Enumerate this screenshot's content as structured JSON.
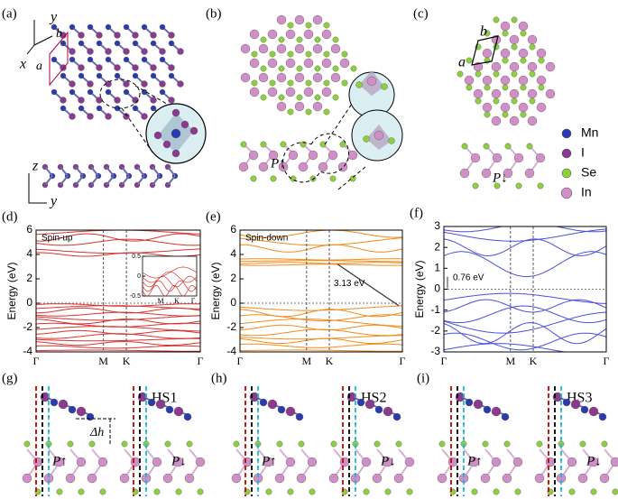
{
  "structures": [
    {
      "label": "(a)",
      "texts": [
        "y",
        "x",
        "b",
        "a",
        "z",
        "y"
      ]
    },
    {
      "label": "(b)",
      "texts": [
        "P↑"
      ]
    },
    {
      "label": "(c)",
      "texts": [
        "b",
        "a",
        "P↓"
      ]
    }
  ],
  "legend": [
    {
      "name": "Mn",
      "color": "#2a3bb0"
    },
    {
      "name": "I",
      "color": "#8a3a8f"
    },
    {
      "name": "Se",
      "color": "#8cd13a"
    },
    {
      "name": "In",
      "color": "#d08fc6"
    }
  ],
  "bands": [
    {
      "label": "(d)",
      "annotation": "Spin-up",
      "ylabel": "Energy (eV)",
      "color": "#d8322f",
      "ylim": [
        -4,
        6
      ],
      "yticks": [
        -4,
        -2,
        0,
        2,
        4,
        6
      ],
      "kpoints": [
        "Γ",
        "M",
        "K",
        "Γ"
      ],
      "inset": {
        "ylim": [
          -0.5,
          0.5
        ],
        "yticks": [
          0.5,
          0,
          -0.5
        ],
        "kpoints": [
          "M",
          "K",
          "Γ"
        ]
      }
    },
    {
      "label": "(e)",
      "annotation": "Spin-down",
      "gap": "3.13 eV",
      "ylabel": "Energy (eV)",
      "color": "#f28a1c",
      "ylim": [
        -4,
        6
      ],
      "yticks": [
        -4,
        -2,
        0,
        2,
        4,
        6
      ],
      "kpoints": [
        "Γ",
        "M",
        "K",
        "Γ"
      ]
    },
    {
      "label": "(f)",
      "gap": "0.76 eV",
      "ylabel": "Energy (eV)",
      "color": "#4a4ee0",
      "ylim": [
        -3,
        3
      ],
      "yticks": [
        -3,
        -2,
        -1,
        0,
        1,
        2,
        3
      ],
      "kpoints": [
        "Γ",
        "M",
        "K",
        "Γ"
      ]
    }
  ],
  "stacking": [
    {
      "label": "(g)",
      "name": "HS1",
      "texts": [
        "Δh",
        "P↑",
        "P↓"
      ]
    },
    {
      "label": "(h)",
      "name": "HS2",
      "texts": [
        "P↑",
        "P↓"
      ]
    },
    {
      "label": "(i)",
      "name": "HS3",
      "texts": [
        "P↑",
        "P↓"
      ]
    }
  ]
}
